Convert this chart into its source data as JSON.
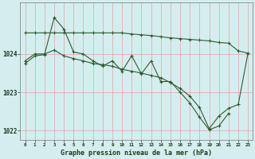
{
  "xlabel": "Graphe pression niveau de la mer (hPa)",
  "background_color": "#d4eef0",
  "grid_color": "#e8a0a0",
  "line_color": "#2d5a2d",
  "hours": [
    0,
    1,
    2,
    3,
    4,
    5,
    6,
    7,
    8,
    9,
    10,
    11,
    12,
    13,
    14,
    15,
    16,
    17,
    18,
    19,
    20,
    21,
    22,
    23
  ],
  "series1_x": [
    0,
    1,
    2,
    3,
    4,
    5,
    6,
    7,
    8,
    9,
    10,
    11,
    12,
    13,
    14,
    15,
    16,
    17,
    18,
    19,
    20,
    21,
    22,
    23
  ],
  "series1_y": [
    1024.55,
    1024.55,
    1024.55,
    1024.55,
    1024.55,
    1024.55,
    1024.55,
    1024.55,
    1024.55,
    1024.55,
    1024.55,
    1024.52,
    1024.5,
    1024.48,
    1024.45,
    1024.42,
    1024.4,
    1024.38,
    1024.36,
    1024.34,
    1024.3,
    1024.28,
    1024.08,
    1024.02
  ],
  "series2_x": [
    0,
    1,
    2,
    3,
    4,
    5,
    6,
    7,
    8,
    9,
    10,
    11,
    12,
    13,
    14,
    15,
    16,
    17,
    18,
    19,
    20,
    21,
    22,
    23
  ],
  "series2_y": [
    1023.82,
    1024.0,
    1024.0,
    1024.1,
    1023.95,
    1023.88,
    1023.82,
    1023.75,
    1023.72,
    1023.68,
    1023.6,
    1023.55,
    1023.5,
    1023.44,
    1023.38,
    1023.25,
    1023.1,
    1022.9,
    1022.6,
    1022.05,
    1022.38,
    1022.58,
    1022.68,
    1024.02
  ],
  "series3_x": [
    0,
    1,
    2,
    3,
    4,
    5,
    6,
    7,
    8,
    9,
    10,
    11,
    12,
    13,
    14,
    15,
    16,
    17,
    18,
    19,
    20,
    21
  ],
  "series3_y": [
    1023.75,
    1023.95,
    1023.98,
    1024.95,
    1024.65,
    1024.05,
    1024.0,
    1023.82,
    1023.68,
    1023.82,
    1023.55,
    1023.95,
    1023.48,
    1023.82,
    1023.28,
    1023.28,
    1023.0,
    1022.72,
    1022.35,
    1022.02,
    1022.12,
    1022.45
  ],
  "ylim_min": 1021.75,
  "ylim_max": 1025.35,
  "yticks": [
    1022,
    1023,
    1024
  ],
  "figwidth": 3.2,
  "figheight": 2.0,
  "dpi": 100
}
